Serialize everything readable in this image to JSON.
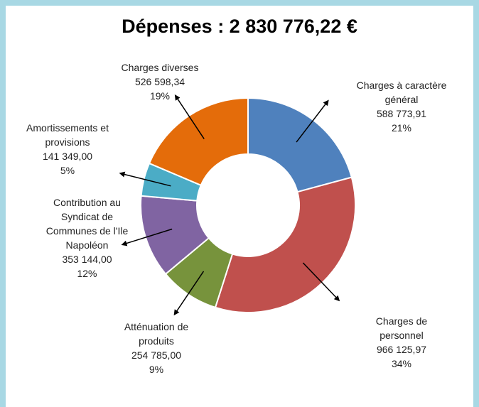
{
  "chart_data": {
    "type": "donut",
    "title": "Dépenses : 2 830 776,22 €",
    "categories": [
      "Charges à caractère général",
      "Charges de personnel",
      "Atténuation de produits",
      "Contribution au Syndicat de Communes de l'Ile Napoléon",
      "Amortissements et provisions",
      "Charges diverses"
    ],
    "values": [
      588773.91,
      966125.97,
      254785.0,
      353144.0,
      141349.0,
      526598.34
    ],
    "value_labels": [
      "588 773,91",
      "966 125,97",
      "254 785,00",
      "353 144,00",
      "141 349,00",
      "526 598,34"
    ],
    "percentages": [
      21,
      34,
      9,
      12,
      5,
      19
    ],
    "percentage_labels": [
      "21%",
      "34%",
      "9%",
      "12%",
      "5%",
      "19%"
    ],
    "colors": [
      "#4f81bd",
      "#c0504d",
      "#77933c",
      "#8064a2",
      "#4bacc6",
      "#e46c0a"
    ]
  }
}
